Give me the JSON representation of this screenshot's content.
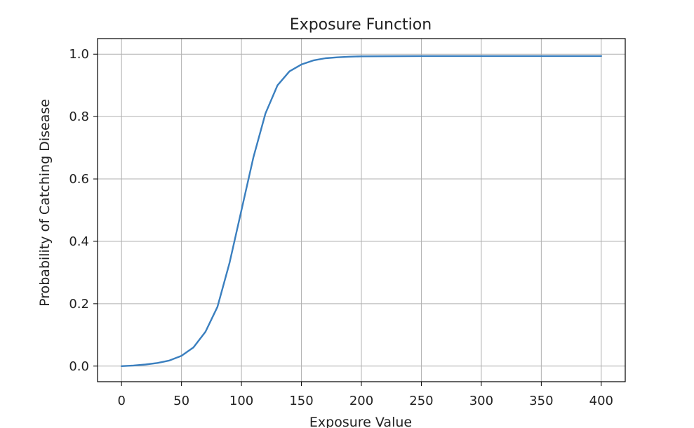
{
  "chart_data": {
    "type": "line",
    "title": "Exposure Function",
    "xlabel": "Exposure Value",
    "ylabel": "Probability of Catching Disease",
    "xlim": [
      -20,
      420
    ],
    "ylim": [
      -0.05,
      1.05
    ],
    "xticks": [
      0,
      50,
      100,
      150,
      200,
      250,
      300,
      350,
      400
    ],
    "xtick_labels": [
      "0",
      "50",
      "100",
      "150",
      "200",
      "250",
      "300",
      "350",
      "400"
    ],
    "yticks": [
      0.0,
      0.2,
      0.4,
      0.6,
      0.8,
      1.0
    ],
    "ytick_labels": [
      "0.0",
      "0.2",
      "0.4",
      "0.6",
      "0.8",
      "1.0"
    ],
    "grid": true,
    "series": [
      {
        "color": "#3a7fbf",
        "x": [
          0,
          10,
          20,
          30,
          40,
          50,
          60,
          70,
          80,
          90,
          100,
          110,
          120,
          130,
          140,
          150,
          160,
          170,
          180,
          190,
          200,
          250,
          300,
          350,
          400
        ],
        "y": [
          0.0,
          0.002,
          0.005,
          0.01,
          0.018,
          0.033,
          0.06,
          0.11,
          0.19,
          0.33,
          0.5,
          0.67,
          0.81,
          0.9,
          0.945,
          0.967,
          0.98,
          0.987,
          0.99,
          0.992,
          0.993,
          0.994,
          0.994,
          0.994,
          0.994
        ]
      }
    ]
  }
}
